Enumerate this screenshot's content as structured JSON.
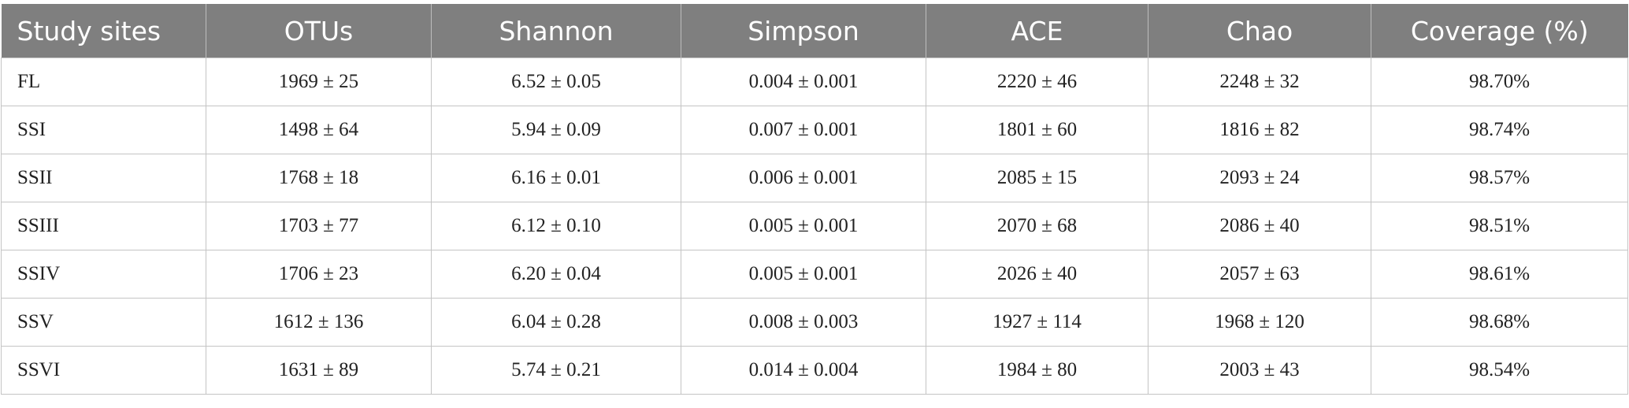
{
  "table": {
    "header": [
      "Study sites",
      "OTUs",
      "Shannon",
      "Simpson",
      "ACE",
      "Chao",
      "Coverage (%)"
    ],
    "rows": [
      [
        "FL",
        "1969 ± 25",
        "6.52 ± 0.05",
        "0.004 ± 0.001",
        "2220 ± 46",
        "2248 ± 32",
        "98.70%"
      ],
      [
        "SSI",
        "1498 ± 64",
        "5.94 ± 0.09",
        "0.007 ± 0.001",
        "1801 ± 60",
        "1816 ± 82",
        "98.74%"
      ],
      [
        "SSII",
        "1768 ± 18",
        "6.16 ± 0.01",
        "0.006 ± 0.001",
        "2085 ± 15",
        "2093 ± 24",
        "98.57%"
      ],
      [
        "SSIII",
        "1703 ± 77",
        "6.12 ± 0.10",
        "0.005 ± 0.001",
        "2070 ± 68",
        "2086 ± 40",
        "98.51%"
      ],
      [
        "SSIV",
        "1706 ± 23",
        "6.20 ± 0.04",
        "0.005 ± 0.001",
        "2026 ± 40",
        "2057 ± 63",
        "98.61%"
      ],
      [
        "SSV",
        "1612 ± 136",
        "6.04 ± 0.28",
        "0.008 ± 0.003",
        "1927 ± 114",
        "1968 ± 120",
        "98.68%"
      ],
      [
        "SSVI",
        "1631 ± 89",
        "5.74 ± 0.21",
        "0.014 ± 0.004",
        "1984 ± 80",
        "2003 ± 43",
        "98.54%"
      ]
    ]
  }
}
